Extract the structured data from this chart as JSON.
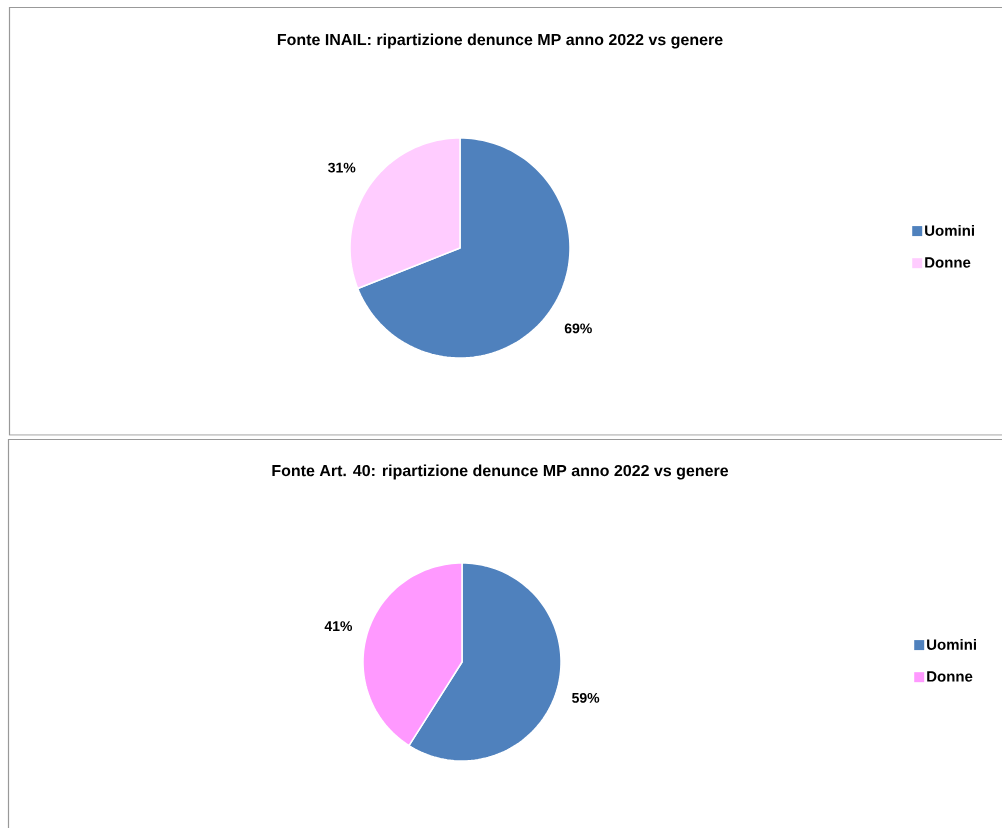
{
  "chart_data": [
    {
      "type": "pie",
      "title": "Fonte INAIL: ripartizione denunce MP  anno 2022 vs genere",
      "categories": [
        "Uomini",
        "Donne"
      ],
      "values": [
        69,
        31
      ],
      "colors": [
        "#4f81bd",
        "#ffccff"
      ],
      "value_labels": [
        "69%",
        "31%"
      ],
      "legend": "right"
    },
    {
      "type": "pie",
      "title": "Fonte Art. 40: ripartizione denunce MP anno 2022 vs genere",
      "categories": [
        "Uomini",
        "Donne"
      ],
      "values": [
        59,
        41
      ],
      "colors": [
        "#4f81bd",
        "#ff99ff"
      ],
      "value_labels": [
        "59%",
        "41%"
      ],
      "legend": "right"
    }
  ]
}
